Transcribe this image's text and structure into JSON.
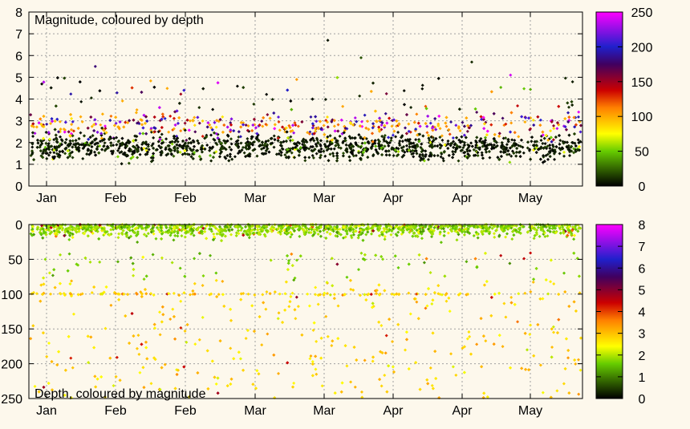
{
  "colors": {
    "background": "#fdf8ec",
    "grid": "#a0a0a0",
    "frame": "#000000"
  },
  "chart_data": [
    {
      "type": "scatter",
      "title": "Magnitude, coloured by depth",
      "xlabel": "",
      "ylabel": "",
      "x_tick_labels": [
        "Jan",
        "Feb",
        "Feb",
        "Mar",
        "Mar",
        "Apr",
        "Apr",
        "May"
      ],
      "y_ticks": [
        "0",
        "1",
        "2",
        "3",
        "4",
        "5",
        "6",
        "7",
        "8"
      ],
      "ylim": [
        0,
        8
      ],
      "colorbar": {
        "ticks": [
          "0",
          "50",
          "100",
          "150",
          "200",
          "250"
        ],
        "range": [
          0,
          250
        ],
        "palette": "black-green-yellow-red-purple-blue-magenta"
      },
      "grid": true,
      "series": [
        {
          "points_summary": "dense cloud of ~5000 events over ~5 months; magnitude mostly 0.5-3, some up to ~6.7",
          "sample_values": [
            [
              0.05,
              1.8,
              10
            ],
            [
              0.12,
              5.5,
              180
            ],
            [
              0.54,
              6.7,
              5
            ],
            [
              0.6,
              5.9,
              20
            ],
            [
              0.8,
              5.7,
              10
            ],
            [
              0.87,
              5.1,
              240
            ]
          ]
        }
      ]
    },
    {
      "type": "scatter",
      "title": "Depth, coloured by magnitude",
      "xlabel": "",
      "ylabel": "",
      "x_tick_labels": [
        "Jan",
        "Feb",
        "Feb",
        "Mar",
        "Mar",
        "Apr",
        "Apr",
        "May"
      ],
      "y_ticks": [
        "0",
        "50",
        "100",
        "150",
        "200",
        "250"
      ],
      "ylim": [
        250,
        0
      ],
      "colorbar": {
        "ticks": [
          "0",
          "1",
          "2",
          "3",
          "4",
          "5",
          "6",
          "7",
          "8"
        ],
        "range": [
          0,
          8
        ],
        "palette": "black-green-yellow-red-purple-blue-magenta"
      },
      "grid": true,
      "series": [
        {
          "points_summary": "most events at depth 0-40 km, sparse deeper events down to ~250 km, a band near 100 km",
          "sample_values": [
            [
              0.1,
              5,
              1.5
            ],
            [
              0.3,
              100,
              3.5
            ],
            [
              0.7,
              100,
              4
            ],
            [
              0.9,
              180,
              2
            ]
          ]
        }
      ]
    }
  ]
}
